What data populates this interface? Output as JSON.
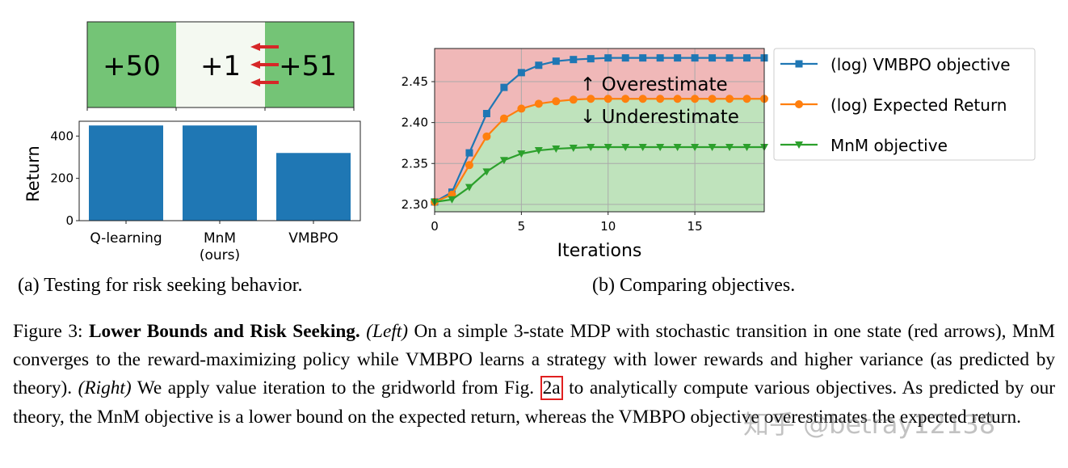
{
  "figure": {
    "subcaption_a": "(a) Testing for risk seeking behavior.",
    "subcaption_b": "(b) Comparing objectives.",
    "caption": {
      "label": "Figure 3:",
      "title": "Lower Bounds and Risk Seeking.",
      "left_tag": "(Left)",
      "left_text": "On a simple 3-state MDP with stochastic transition in one state (red arrows), MnM converges to the reward-maximizing policy while VMBPO learns a strategy with lower rewards and higher variance (as predicted by theory).",
      "right_tag": "(Right)",
      "right_text_1": "We apply value iteration to the gridworld from Fig.",
      "fig_ref": "2a",
      "right_text_2": "to analytically compute various objectives. As predicted by our theory, the MnM objective is a lower bound on the expected return, whereas the VMBPO objective overestimates the expected return."
    },
    "watermark": "知乎 @betray12138"
  },
  "gridworld": {
    "cells": [
      {
        "label": "+50",
        "color": "#74c476"
      },
      {
        "label": "+1",
        "color": "#f4f9f1"
      },
      {
        "label": "+51",
        "color": "#74c476"
      }
    ],
    "arrow_color": "#d62728"
  },
  "chart_data": [
    {
      "type": "bar",
      "categories": [
        "Q-learning",
        "MnM",
        "VMBPO"
      ],
      "category_sublabels": [
        "",
        "(ours)",
        ""
      ],
      "values": [
        450,
        450,
        320
      ],
      "ylabel": "Return",
      "yticks": [
        0,
        200,
        400
      ],
      "ylim": [
        0,
        470
      ],
      "color": "#1f77b4",
      "grid": false
    },
    {
      "type": "line",
      "xlabel": "Iterations",
      "xticks": [
        0,
        5,
        10,
        15
      ],
      "yticks": [
        2.3,
        2.35,
        2.4,
        2.45
      ],
      "xlim": [
        0,
        19
      ],
      "ylim": [
        2.291,
        2.4905
      ],
      "grid": true,
      "legend_position": "outside-right",
      "annotations": [
        "↑  Overestimate",
        "↓  Underestimate"
      ],
      "region_colors": {
        "above": "#f0b8b8",
        "below": "#bfe3bc"
      },
      "x": [
        0,
        1,
        2,
        3,
        4,
        5,
        6,
        7,
        8,
        9,
        10,
        11,
        12,
        13,
        14,
        15,
        16,
        17,
        18,
        19
      ],
      "series": [
        {
          "name": "(log) VMBPO objective",
          "color": "#1f77b4",
          "marker": "square",
          "values": [
            2.303,
            2.315,
            2.363,
            2.411,
            2.443,
            2.461,
            2.47,
            2.475,
            2.477,
            2.478,
            2.479,
            2.479,
            2.479,
            2.479,
            2.479,
            2.479,
            2.479,
            2.479,
            2.479,
            2.479
          ]
        },
        {
          "name": "(log) Expected Return",
          "color": "#ff7f0e",
          "marker": "circle",
          "values": [
            2.303,
            2.312,
            2.348,
            2.383,
            2.405,
            2.417,
            2.423,
            2.426,
            2.428,
            2.429,
            2.429,
            2.429,
            2.429,
            2.429,
            2.429,
            2.429,
            2.429,
            2.429,
            2.429,
            2.429
          ]
        },
        {
          "name": "MnM objective",
          "color": "#2ca02c",
          "marker": "triangle-down",
          "values": [
            2.303,
            2.306,
            2.321,
            2.34,
            2.354,
            2.362,
            2.366,
            2.368,
            2.369,
            2.37,
            2.37,
            2.37,
            2.37,
            2.37,
            2.37,
            2.37,
            2.37,
            2.37,
            2.37,
            2.37
          ]
        }
      ]
    }
  ]
}
